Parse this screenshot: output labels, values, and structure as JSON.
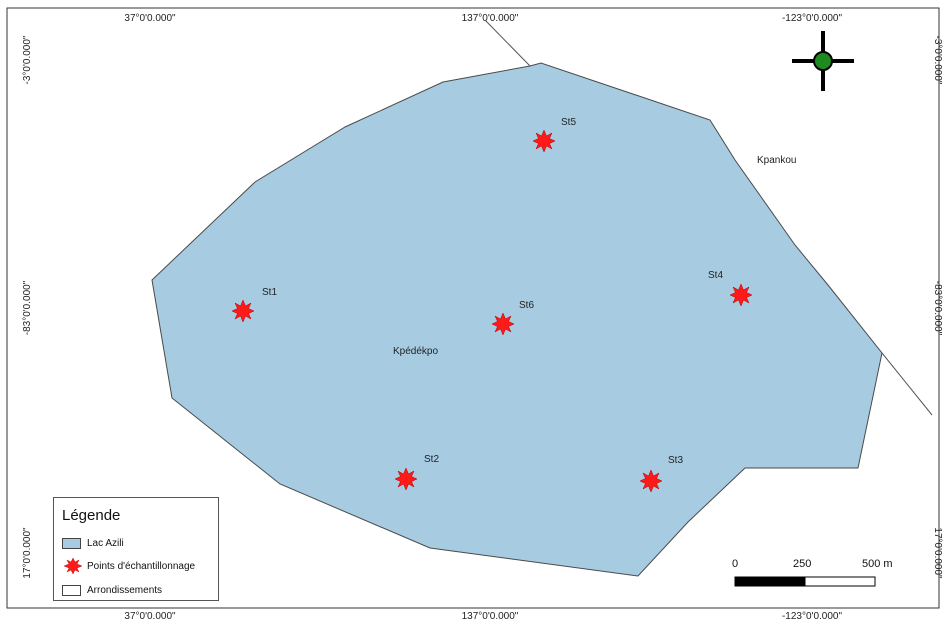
{
  "frame": {
    "top_labels": [
      "37°0'0.000\"",
      "137°0'0.000\"",
      "-123°0'0.000\""
    ],
    "bottom_labels": [
      "37°0'0.000\"",
      "137°0'0.000\"",
      "-123°0'0.000\""
    ],
    "left_labels": [
      "-3°0'0.000\"",
      "-83°0'0.000\"",
      "17°0'0.000\""
    ],
    "right_labels": [
      "-3°0'0.000\"",
      "-83°0'0.000\"",
      "17°0'0.000\""
    ]
  },
  "places": {
    "kpankou": "Kpankou",
    "kpedekpo": "Kpédékpo"
  },
  "stations": [
    {
      "label": "St1"
    },
    {
      "label": "St2"
    },
    {
      "label": "St3"
    },
    {
      "label": "St4"
    },
    {
      "label": "St5"
    },
    {
      "label": "St6"
    }
  ],
  "legend": {
    "title": "Légende",
    "items": [
      {
        "label": "Lac Azili",
        "color": "#a7cce2"
      },
      {
        "label": "Points d'échantillonnage",
        "color": "#ff1a1a"
      },
      {
        "label": "Arrondissements",
        "color": "#ffffff"
      }
    ]
  },
  "scale": {
    "labels": [
      "0",
      "250",
      "500 m"
    ]
  },
  "colors": {
    "lake_fill": "#a7cce2",
    "lake_stroke": "#4a4a4a",
    "station": "#ff1a1a",
    "north_arrow": "#1f8a1f"
  },
  "icons": {
    "north_arrow": "crosshair-north-arrow-icon",
    "station": "red-starburst-icon"
  }
}
